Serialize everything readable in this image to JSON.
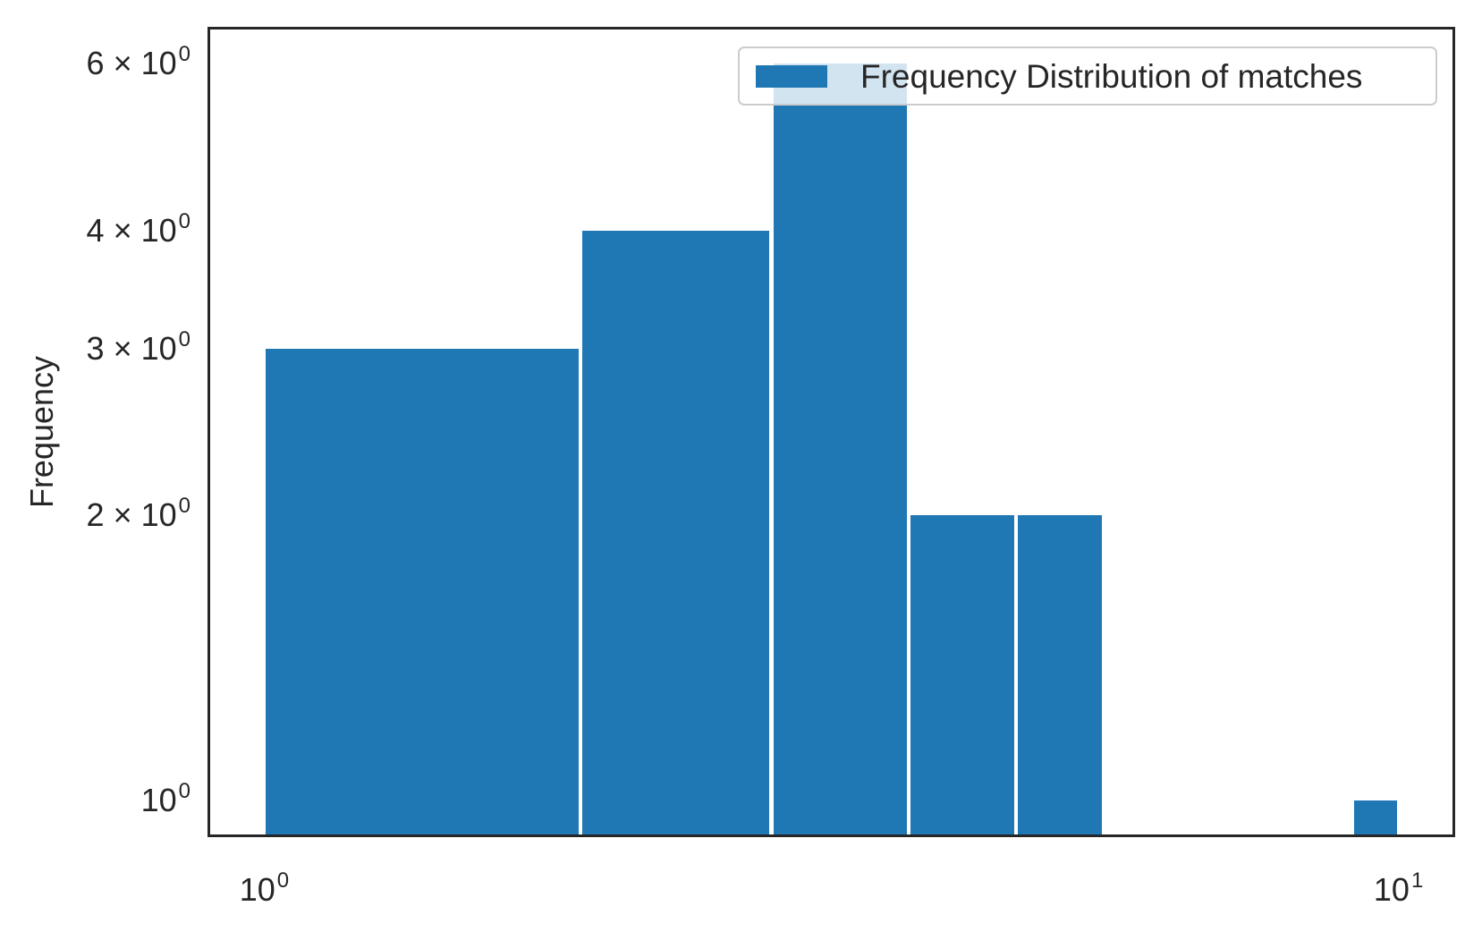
{
  "figure": {
    "background": "#ffffff",
    "bar_color": "#1f77b4",
    "axis_color": "#262626",
    "text_color": "#262626",
    "ylabel": "Frequency",
    "legend": {
      "label": "Frequency Distribution of matches",
      "swatch_color": "#1f77b4",
      "border_color": "#cccccc"
    }
  },
  "chart_data": {
    "type": "bar",
    "subtype": "histogram",
    "title": "",
    "xlabel": "",
    "ylabel": "Frequency",
    "x_scale": "log",
    "y_scale": "log",
    "bin_edges": [
      1.0,
      1.9,
      2.8,
      3.7,
      4.6,
      5.5,
      6.4,
      7.3,
      8.2,
      9.1,
      10.0
    ],
    "counts": [
      3,
      4,
      6,
      2,
      2,
      0,
      0,
      0,
      0,
      1
    ],
    "xlim": [
      0.8913,
      11.22
    ],
    "ylim": [
      0.9141,
      6.5613
    ],
    "x_ticks": [
      {
        "value": 1,
        "coef": "",
        "exp": "0",
        "label": "10^0"
      },
      {
        "value": 10,
        "coef": "",
        "exp": "1",
        "label": "10^1"
      }
    ],
    "y_ticks": [
      {
        "value": 1,
        "coef": "",
        "exp": "0",
        "label": "10^0"
      },
      {
        "value": 2,
        "coef": "2",
        "exp": "0",
        "label": "2 x 10^0"
      },
      {
        "value": 3,
        "coef": "3",
        "exp": "0",
        "label": "3 x 10^0"
      },
      {
        "value": 4,
        "coef": "4",
        "exp": "0",
        "label": "4 x 10^0"
      },
      {
        "value": 6,
        "coef": "6",
        "exp": "0",
        "label": "6 x 10^0"
      }
    ],
    "legend": [
      "Frequency Distribution of matches"
    ],
    "legend_position": "upper right",
    "grid": false
  }
}
